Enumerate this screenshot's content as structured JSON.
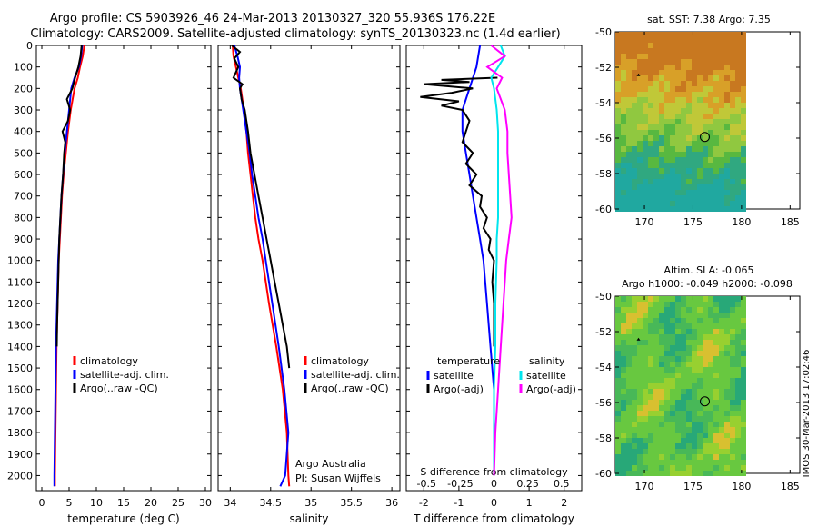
{
  "header": {
    "line1": "Argo profile: CS 5903926_46 24-Mar-2013 20130327_320 55.936S 176.22E",
    "line2": "Climatology: CARS2009. Satellite-adjusted climatology: synTS_20130323.nc (1.4d earlier)"
  },
  "footer": {
    "stamp": "IMOS 30-Mar-2013 17:02:46",
    "credit1": "Argo Australia",
    "credit2": "PI: Susan Wijffels"
  },
  "colors": {
    "climatology": "#ff0000",
    "satellite": "#0000ff",
    "argo": "#000000",
    "salinity_satellite": "#00e5ee",
    "salinity_argo": "#ff00ff"
  },
  "chart_data": [
    {
      "type": "line",
      "xlabel": "temperature (deg C)",
      "ylabel": "",
      "xlim": [
        -1,
        31
      ],
      "ylim": [
        2070,
        0
      ],
      "xticks": [
        0,
        5,
        10,
        15,
        20,
        25,
        30
      ],
      "yticks": [
        0,
        100,
        200,
        300,
        400,
        500,
        600,
        700,
        800,
        900,
        1000,
        1100,
        1200,
        1300,
        1400,
        1500,
        1600,
        1700,
        1800,
        1900,
        2000
      ],
      "legend": [
        "climatology",
        "satellite-adj. clim.",
        "Argo(..raw -QC)"
      ],
      "series": [
        {
          "name": "climatology",
          "depth": [
            0,
            50,
            100,
            150,
            200,
            300,
            400,
            500,
            600,
            700,
            800,
            900,
            1000,
            1200,
            1400,
            1600,
            1800,
            2000,
            2050
          ],
          "values": [
            7.8,
            7.5,
            7.0,
            6.6,
            6.0,
            5.3,
            4.8,
            4.4,
            4.0,
            3.7,
            3.5,
            3.3,
            3.1,
            2.9,
            2.7,
            2.6,
            2.5,
            2.4,
            2.4
          ]
        },
        {
          "name": "satellite-adj. clim.",
          "depth": [
            0,
            50,
            100,
            150,
            200,
            300,
            400,
            500,
            600,
            700,
            800,
            900,
            1000,
            1200,
            1400,
            1600,
            1800,
            2000,
            2050
          ],
          "values": [
            7.4,
            7.2,
            6.8,
            6.0,
            5.4,
            5.0,
            4.6,
            4.2,
            3.9,
            3.6,
            3.4,
            3.2,
            3.0,
            2.8,
            2.6,
            2.5,
            2.4,
            2.3,
            2.3
          ]
        },
        {
          "name": "Argo(..raw -QC)",
          "depth": [
            0,
            50,
            100,
            150,
            200,
            250,
            300,
            350,
            400,
            450,
            500,
            600,
            700,
            800,
            900,
            1000,
            1100,
            1200,
            1300,
            1400
          ],
          "values": [
            7.3,
            7.1,
            6.7,
            6.1,
            5.6,
            4.6,
            5.2,
            4.8,
            3.8,
            4.3,
            4.1,
            3.9,
            3.6,
            3.4,
            3.2,
            3.1,
            3.0,
            2.9,
            2.8,
            2.75
          ]
        }
      ]
    },
    {
      "type": "line",
      "xlabel": "salinity",
      "ylabel": "",
      "xlim": [
        33.85,
        36.1
      ],
      "ylim": [
        2070,
        0
      ],
      "xticks": [
        34,
        34.5,
        35,
        35.5,
        36
      ],
      "legend": [
        "climatology",
        "satellite-adj. clim.",
        "Argo(..raw -QC)"
      ],
      "series": [
        {
          "name": "climatology",
          "depth": [
            0,
            50,
            100,
            150,
            200,
            300,
            400,
            500,
            600,
            700,
            800,
            900,
            1000,
            1200,
            1400,
            1600,
            1800,
            2000,
            2050
          ],
          "values": [
            34.03,
            34.04,
            34.07,
            34.1,
            34.13,
            34.17,
            34.2,
            34.22,
            34.25,
            34.28,
            34.31,
            34.35,
            34.4,
            34.48,
            34.57,
            34.65,
            34.7,
            34.72,
            34.73
          ]
        },
        {
          "name": "satellite-adj. clim.",
          "depth": [
            0,
            50,
            100,
            150,
            200,
            300,
            400,
            500,
            600,
            700,
            800,
            900,
            1000,
            1200,
            1400,
            1600,
            1800,
            2000,
            2050
          ],
          "values": [
            34.05,
            34.09,
            34.12,
            34.11,
            34.12,
            34.16,
            34.2,
            34.24,
            34.27,
            34.31,
            34.35,
            34.4,
            34.44,
            34.52,
            34.6,
            34.67,
            34.72,
            34.68,
            34.62
          ]
        },
        {
          "name": "Argo(..raw -QC)",
          "depth": [
            0,
            30,
            60,
            100,
            150,
            180,
            200,
            250,
            300,
            400,
            500,
            600,
            700,
            800,
            900,
            1000,
            1100,
            1200,
            1300,
            1400,
            1500
          ],
          "values": [
            34.02,
            34.12,
            34.05,
            34.1,
            34.04,
            34.15,
            34.12,
            34.14,
            34.18,
            34.22,
            34.25,
            34.3,
            34.35,
            34.4,
            34.45,
            34.5,
            34.55,
            34.6,
            34.65,
            34.7,
            34.73
          ]
        }
      ]
    },
    {
      "type": "line",
      "xlabel": "T difference from climatology",
      "x2label": "S difference from climatology",
      "xlim": [
        -2.5,
        2.5
      ],
      "x2lim": [
        -0.65,
        0.65
      ],
      "ylim": [
        2070,
        0
      ],
      "xticks": [
        -2,
        -1,
        0,
        1,
        2
      ],
      "x2ticks": [
        -0.5,
        -0.25,
        0,
        0.25,
        0.5
      ],
      "x2ticklabels": [
        "-0.5",
        "-0.25",
        "0",
        "0.25",
        "0.5"
      ],
      "legend_headers": [
        "temperature",
        "salinity"
      ],
      "legend": [
        "satellite",
        "Argo(-adj)",
        "satellite",
        "Argo(-adj)"
      ],
      "series": [
        {
          "name": "satellite",
          "axis": "T",
          "depth": [
            0,
            100,
            200,
            300,
            400,
            500,
            600,
            700,
            800,
            900,
            1000,
            1200,
            1400,
            1600,
            1800,
            2000
          ],
          "values": [
            -0.4,
            -0.5,
            -0.7,
            -0.9,
            -0.9,
            -0.8,
            -0.7,
            -0.6,
            -0.5,
            -0.4,
            -0.3,
            -0.2,
            -0.1,
            0,
            0,
            0
          ]
        },
        {
          "name": "Argo(-adj)",
          "axis": "T",
          "depth": [
            150,
            160,
            170,
            180,
            200,
            220,
            240,
            260,
            280,
            300,
            350,
            400,
            450,
            500,
            550,
            600,
            650,
            700,
            750,
            800,
            850,
            900,
            950,
            1000,
            1100,
            1200,
            1300,
            1400
          ],
          "values": [
            0.1,
            -1.5,
            -0.7,
            -2.0,
            -0.6,
            -1.2,
            -2.1,
            -1.0,
            -1.5,
            -0.9,
            -0.7,
            -0.8,
            -0.9,
            -0.6,
            -0.8,
            -0.5,
            -0.7,
            -0.35,
            -0.4,
            -0.2,
            -0.3,
            -0.1,
            -0.15,
            0,
            -0.05,
            0,
            0,
            0
          ]
        },
        {
          "name": "satellite",
          "axis": "S",
          "depth": [
            0,
            50,
            100,
            150,
            200,
            300,
            400,
            500,
            600,
            700,
            800,
            900,
            1000,
            1200,
            1400,
            1600,
            1800,
            2000
          ],
          "values": [
            0.05,
            0.08,
            0.03,
            -0.02,
            0.0,
            0.02,
            0.03,
            0.03,
            0.03,
            0.03,
            0.03,
            0.02,
            0.02,
            0.01,
            0.01,
            0.0,
            0.0,
            0.0
          ]
        },
        {
          "name": "Argo(-adj)",
          "axis": "S",
          "depth": [
            0,
            50,
            100,
            150,
            200,
            300,
            400,
            500,
            600,
            700,
            800,
            900,
            1000,
            1200,
            1400,
            1600,
            1800,
            2000
          ],
          "values": [
            -0.02,
            0.08,
            -0.05,
            0.06,
            0.02,
            0.08,
            0.1,
            0.1,
            0.11,
            0.12,
            0.13,
            0.11,
            0.09,
            0.07,
            0.05,
            0.03,
            0.01,
            0.0
          ]
        }
      ]
    },
    {
      "type": "heatmap",
      "title": "sat. SST: 7.38 Argo: 7.35",
      "xlim": [
        167,
        186
      ],
      "ylim": [
        -60,
        -50
      ],
      "xticks": [
        170,
        175,
        180,
        185
      ],
      "yticks": [
        -50,
        -52,
        -54,
        -56,
        -58,
        -60
      ],
      "xticklabels": [
        "170",
        "175",
        "180",
        "185"
      ],
      "yticklabels": [
        "-50",
        "-52",
        "-54",
        "-56",
        "-58",
        "-60"
      ],
      "profile_position": [
        176.22,
        -55.936
      ]
    },
    {
      "type": "heatmap",
      "title_line1": "Altim. SLA: -0.065",
      "title_line2": "Argo h1000: -0.049 h2000: -0.098",
      "xlim": [
        167,
        186
      ],
      "ylim": [
        -60,
        -50
      ],
      "xticks": [
        170,
        175,
        180,
        185
      ],
      "yticks": [
        -50,
        -52,
        -54,
        -56,
        -58,
        -60
      ],
      "xticklabels": [
        "170",
        "175",
        "180",
        "185"
      ],
      "yticklabels": [
        "-50",
        "-52",
        "-54",
        "-56",
        "-58",
        "-60"
      ],
      "profile_position": [
        176.22,
        -55.936
      ]
    }
  ]
}
